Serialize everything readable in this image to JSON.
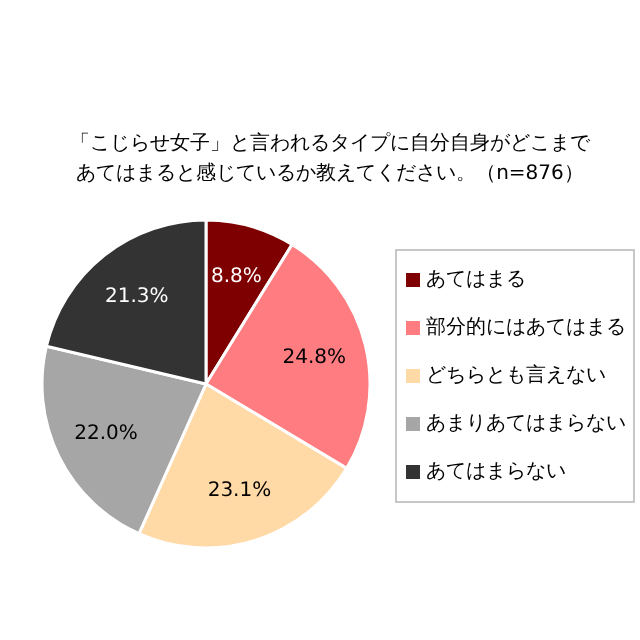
{
  "chart_data": {
    "type": "pie",
    "title": "「こじらせ女子」と言われるタイプに自分自身がどこまであてはまると感じているか教えてください。（n=876）",
    "categories": [
      "あてはまる",
      "部分的にはあてはまる",
      "どちらとも言えない",
      "あまりあてはまらない",
      "あてはまらない"
    ],
    "values": [
      8.8,
      24.8,
      23.1,
      22.0,
      21.3
    ],
    "value_labels": [
      "8.8%",
      "24.8%",
      "23.1%",
      "22.0%",
      "21.3%"
    ],
    "colors": [
      "#7f0000",
      "#ff7c80",
      "#ffd9a6",
      "#a6a6a6",
      "#333333"
    ],
    "legend": "right"
  }
}
